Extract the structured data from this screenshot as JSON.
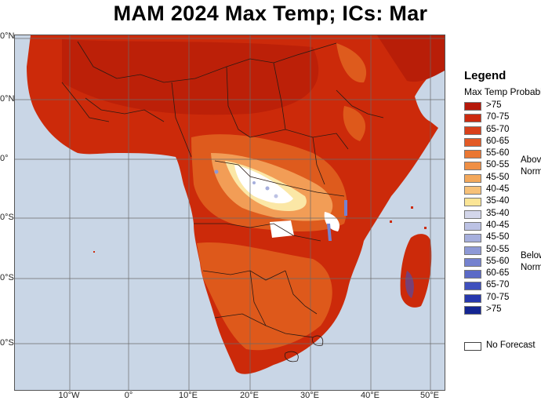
{
  "title": "MAM 2024 Max Temp; ICs: Mar",
  "map": {
    "lat_labels": [
      "0°N",
      "0°N",
      "0°",
      "0°S",
      "0°S",
      "0°S"
    ],
    "lon_labels": [
      "10°W",
      "0°",
      "10°E",
      "20°E",
      "30°E",
      "40°E",
      "50°E"
    ],
    "colors": {
      "ocean": "#c9d6e6",
      "land_background": "#cc2a0a",
      "deep_red": "#b81e08",
      "orange": "#e0611f",
      "light_orange": "#f2a15a",
      "pale_yellow": "#fbe7a6",
      "white_patch": "#ffffff",
      "border": "#2a1a14"
    }
  },
  "legend": {
    "title": "Legend",
    "subtitle": "Max Temp Probability",
    "above_normal_label": "Above",
    "above_normal_label2": "Normal",
    "below_normal_label": "Below",
    "below_normal_label2": "Normal",
    "no_forecast_label": "No Forecast",
    "items": [
      {
        "label": ">75",
        "color": "#b5180a"
      },
      {
        "label": "70-75",
        "color": "#cc2a0f"
      },
      {
        "label": "65-70",
        "color": "#d9401a"
      },
      {
        "label": "60-65",
        "color": "#e35a26"
      },
      {
        "label": "55-60",
        "color": "#ea7733"
      },
      {
        "label": "50-55",
        "color": "#ef8f45"
      },
      {
        "label": "45-50",
        "color": "#f3a85b"
      },
      {
        "label": "40-45",
        "color": "#f7c178"
      },
      {
        "label": "35-40",
        "color": "#fbe596"
      },
      {
        "label": "35-40",
        "color": "#d3d6ea"
      },
      {
        "label": "40-45",
        "color": "#bcc2e4"
      },
      {
        "label": "45-50",
        "color": "#a6afdd"
      },
      {
        "label": "50-55",
        "color": "#8e99d6"
      },
      {
        "label": "55-60",
        "color": "#7582cf"
      },
      {
        "label": "60-65",
        "color": "#5b6ac7"
      },
      {
        "label": "65-70",
        "color": "#3f50bd"
      },
      {
        "label": "70-75",
        "color": "#2637ad"
      },
      {
        "label": ">75",
        "color": "#142592"
      }
    ]
  }
}
